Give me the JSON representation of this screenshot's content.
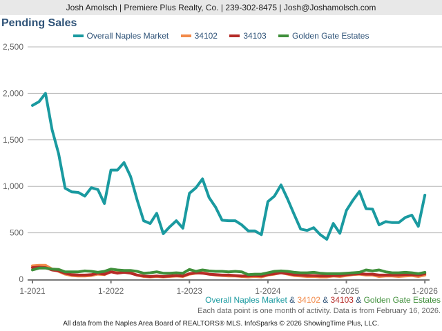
{
  "header": {
    "contact_line": "Josh Amolsch | Premiere Plus Realty, Co. | 239-302-8475 | Josh@Joshamolsch.com"
  },
  "chart_title": "Pending Sales",
  "legend": [
    {
      "label": "Overall Naples Market",
      "color": "#1a9aa0"
    },
    {
      "label": "34102",
      "color": "#f28a4a"
    },
    {
      "label": "34103",
      "color": "#b52b27"
    },
    {
      "label": "Golden Gate Estates",
      "color": "#3f8f3a"
    }
  ],
  "caption": {
    "parts": [
      "Overall Naples Market",
      " & ",
      "34102",
      " & ",
      "34103",
      " & ",
      "Golden Gate Estates"
    ]
  },
  "note": "Each data point is one month of activity. Data is from February 16, 2026.",
  "footer": "All data from the Naples Area Board of REALTORS® MLS. InfoSparks © 2026 ShowingTime Plus, LLC.",
  "chart_data": {
    "type": "line",
    "title": "Pending Sales",
    "xlabel": "",
    "ylabel": "",
    "ylim": [
      0,
      2500
    ],
    "yticks": [
      0,
      500,
      1000,
      1500,
      2000,
      2500
    ],
    "ytick_labels": [
      "0",
      "500",
      "1,000",
      "1,500",
      "2,000",
      "2,500"
    ],
    "xtick_labels": [
      "1-2021",
      "1-2022",
      "1-2023",
      "1-2024",
      "1-2025",
      "1-2026"
    ],
    "x_start": "2021-01",
    "x_end": "2026-01",
    "x_step": "month",
    "grid": true,
    "legend_position": "top",
    "series": [
      {
        "name": "Overall Naples Market",
        "color": "#1a9aa0",
        "values": [
          1870,
          1910,
          2000,
          1610,
          1350,
          980,
          940,
          935,
          895,
          985,
          965,
          815,
          1175,
          1175,
          1255,
          1105,
          855,
          630,
          600,
          710,
          490,
          565,
          630,
          550,
          925,
          985,
          1080,
          880,
          775,
          635,
          630,
          630,
          585,
          520,
          520,
          480,
          835,
          895,
          1015,
          865,
          700,
          540,
          525,
          555,
          480,
          430,
          600,
          495,
          740,
          850,
          945,
          760,
          755,
          585,
          620,
          610,
          610,
          665,
          690,
          570,
          905
        ]
      },
      {
        "name": "34102",
        "color": "#f28a4a",
        "values": [
          145,
          150,
          150,
          110,
          85,
          55,
          40,
          35,
          35,
          40,
          55,
          50,
          80,
          70,
          85,
          70,
          45,
          30,
          25,
          30,
          25,
          30,
          35,
          30,
          55,
          65,
          70,
          55,
          45,
          40,
          35,
          35,
          30,
          25,
          30,
          25,
          45,
          55,
          70,
          55,
          40,
          35,
          30,
          30,
          25,
          25,
          35,
          30,
          40,
          50,
          55,
          45,
          45,
          30,
          35,
          35,
          30,
          35,
          40,
          30,
          45
        ]
      },
      {
        "name": "34103",
        "color": "#b52b27",
        "values": [
          125,
          130,
          125,
          100,
          90,
          65,
          50,
          45,
          45,
          50,
          65,
          55,
          80,
          65,
          75,
          65,
          45,
          35,
          30,
          35,
          30,
          35,
          40,
          35,
          60,
          70,
          65,
          55,
          50,
          45,
          45,
          40,
          35,
          35,
          40,
          35,
          50,
          60,
          70,
          60,
          50,
          45,
          40,
          40,
          35,
          35,
          40,
          40,
          50,
          55,
          60,
          55,
          55,
          45,
          45,
          45,
          45,
          50,
          50,
          45,
          60
        ]
      },
      {
        "name": "Golden Gate Estates",
        "color": "#3f8f3a",
        "values": [
          100,
          120,
          120,
          110,
          105,
          80,
          80,
          80,
          90,
          85,
          75,
          85,
          110,
          100,
          95,
          95,
          85,
          65,
          70,
          80,
          65,
          65,
          70,
          65,
          105,
          85,
          100,
          90,
          85,
          85,
          80,
          85,
          80,
          50,
          55,
          55,
          70,
          85,
          90,
          85,
          75,
          70,
          70,
          75,
          65,
          60,
          60,
          60,
          65,
          70,
          75,
          100,
          90,
          100,
          80,
          70,
          70,
          75,
          70,
          60,
          75
        ]
      }
    ]
  }
}
